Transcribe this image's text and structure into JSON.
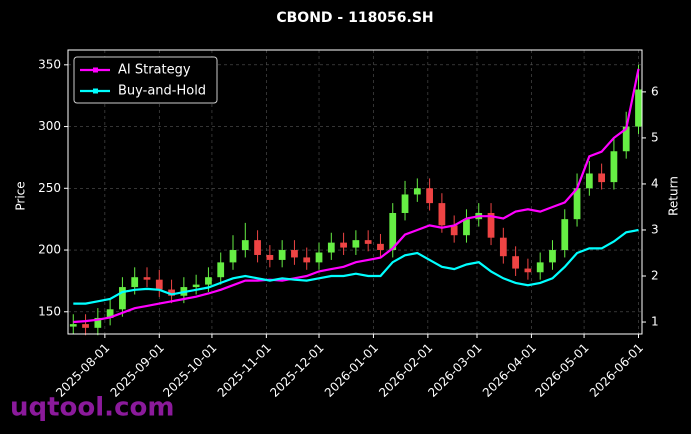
{
  "chart_data": {
    "type": "candlestick",
    "title": "CBOND - 118056.SH",
    "ylabel": "Price",
    "y2label": "Return",
    "watermark": "uqtool.com",
    "x": [
      "2025-07-14",
      "2025-07-21",
      "2025-07-28",
      "2025-08-04",
      "2025-08-11",
      "2025-08-18",
      "2025-08-25",
      "2025-09-01",
      "2025-09-08",
      "2025-09-15",
      "2025-09-22",
      "2025-09-29",
      "2025-10-06",
      "2025-10-13",
      "2025-10-20",
      "2025-10-27",
      "2025-11-03",
      "2025-11-10",
      "2025-11-17",
      "2025-11-24",
      "2025-12-01",
      "2025-12-08",
      "2025-12-15",
      "2025-12-22",
      "2025-12-29",
      "2026-01-05",
      "2026-01-12",
      "2026-01-19",
      "2026-01-26",
      "2026-02-02",
      "2026-02-09",
      "2026-02-16",
      "2026-02-23",
      "2026-03-02",
      "2026-03-09",
      "2026-03-16",
      "2026-03-23",
      "2026-03-30",
      "2026-04-06",
      "2026-04-13",
      "2026-04-20",
      "2026-04-27",
      "2026-05-04",
      "2026-05-11",
      "2026-05-18",
      "2026-05-25",
      "2026-06-01"
    ],
    "open": [
      138,
      140,
      137,
      145,
      152,
      170,
      178,
      176,
      168,
      163,
      170,
      172,
      178,
      190,
      200,
      208,
      196,
      192,
      200,
      194,
      190,
      198,
      206,
      202,
      208,
      205,
      200,
      230,
      245,
      250,
      238,
      220,
      212,
      225,
      230,
      210,
      195,
      185,
      182,
      190,
      200,
      225,
      250,
      262,
      255,
      280,
      300
    ],
    "high": [
      148,
      148,
      153,
      160,
      178,
      186,
      186,
      184,
      176,
      178,
      180,
      186,
      198,
      212,
      222,
      216,
      204,
      208,
      208,
      202,
      206,
      214,
      214,
      216,
      216,
      213,
      238,
      256,
      258,
      258,
      246,
      228,
      233,
      238,
      238,
      218,
      203,
      193,
      198,
      208,
      233,
      262,
      272,
      270,
      290,
      312,
      350
    ],
    "low": [
      132,
      131,
      131,
      139,
      146,
      164,
      170,
      162,
      157,
      157,
      164,
      166,
      172,
      184,
      194,
      190,
      186,
      186,
      188,
      184,
      184,
      192,
      196,
      196,
      199,
      194,
      194,
      224,
      239,
      232,
      214,
      206,
      206,
      219,
      204,
      189,
      179,
      176,
      176,
      184,
      194,
      219,
      244,
      249,
      249,
      274,
      294
    ],
    "close": [
      140,
      137,
      145,
      152,
      170,
      178,
      176,
      168,
      163,
      170,
      172,
      178,
      190,
      200,
      208,
      196,
      192,
      200,
      194,
      190,
      198,
      206,
      202,
      208,
      205,
      200,
      230,
      245,
      250,
      238,
      220,
      212,
      225,
      230,
      210,
      195,
      185,
      182,
      190,
      200,
      225,
      250,
      262,
      255,
      280,
      300,
      330
    ],
    "up_color": "#66ee44",
    "down_color": "#ee4444",
    "series": [
      {
        "name": "AI Strategy",
        "color": "#ff00ff",
        "axis": "y2",
        "values": [
          1.0,
          1.02,
          1.05,
          1.1,
          1.2,
          1.3,
          1.35,
          1.4,
          1.45,
          1.5,
          1.55,
          1.62,
          1.7,
          1.8,
          1.9,
          1.9,
          1.92,
          1.9,
          1.95,
          2.0,
          2.1,
          2.15,
          2.2,
          2.3,
          2.35,
          2.4,
          2.6,
          2.9,
          3.0,
          3.1,
          3.05,
          3.1,
          3.25,
          3.3,
          3.3,
          3.25,
          3.4,
          3.45,
          3.4,
          3.5,
          3.6,
          3.9,
          4.6,
          4.7,
          5.0,
          5.2,
          6.5
        ]
      },
      {
        "name": "Buy-and-Hold",
        "color": "#00ffff",
        "axis": "y2",
        "values": [
          1.4,
          1.4,
          1.45,
          1.5,
          1.65,
          1.7,
          1.72,
          1.7,
          1.6,
          1.65,
          1.7,
          1.75,
          1.85,
          1.95,
          2.0,
          1.95,
          1.9,
          1.95,
          1.92,
          1.9,
          1.95,
          2.0,
          2.0,
          2.05,
          2.0,
          2.0,
          2.3,
          2.45,
          2.5,
          2.35,
          2.2,
          2.15,
          2.25,
          2.3,
          2.1,
          1.95,
          1.85,
          1.8,
          1.85,
          1.95,
          2.2,
          2.5,
          2.6,
          2.6,
          2.75,
          2.95,
          3.0
        ]
      }
    ],
    "xlim": [
      "2025-07-11",
      "2026-06-03"
    ],
    "xticks": [
      "2025-08-01",
      "2025-09-01",
      "2025-10-01",
      "2025-11-01",
      "2025-12-01",
      "2026-01-01",
      "2026-02-01",
      "2026-03-01",
      "2026-04-01",
      "2026-05-01",
      "2026-06-01"
    ],
    "ylim": [
      132,
      362
    ],
    "yticks": [
      150,
      200,
      250,
      300,
      350
    ],
    "y2lim": [
      0.74,
      6.91
    ],
    "y2ticks": [
      1,
      2,
      3,
      4,
      5,
      6
    ],
    "grid": true,
    "legend": "upper left"
  }
}
